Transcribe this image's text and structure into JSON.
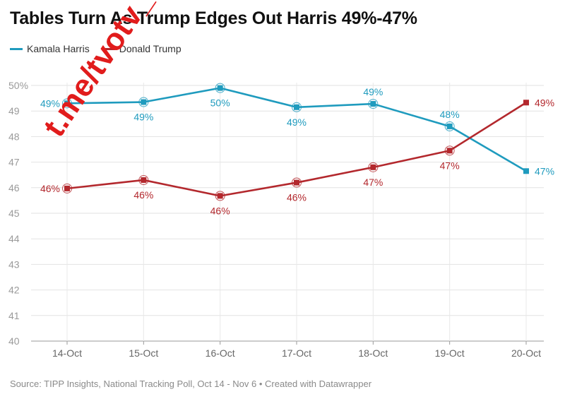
{
  "header": {
    "title": "Tables Turn As Trump Edges Out Harris 49%-47%"
  },
  "watermark": "t.me/tvotv_sk",
  "source": "Source: TIPP Insights, National Tracking Poll, Oct 14 - Nov 6 • Created with Datawrapper",
  "chart_data": {
    "type": "line",
    "title": "Tables Turn As Trump Edges Out Harris 49%-47%",
    "xlabel": "",
    "ylabel": "",
    "categories": [
      "14-Oct",
      "15-Oct",
      "16-Oct",
      "17-Oct",
      "18-Oct",
      "19-Oct",
      "20-Oct"
    ],
    "ylim": [
      40,
      50
    ],
    "yticks": [
      {
        "value": 50,
        "label": "50%"
      },
      {
        "value": 49,
        "label": "49"
      },
      {
        "value": 48,
        "label": "48"
      },
      {
        "value": 47,
        "label": "47"
      },
      {
        "value": 46,
        "label": "46"
      },
      {
        "value": 45,
        "label": "45"
      },
      {
        "value": 44,
        "label": "44"
      },
      {
        "value": 43,
        "label": "43"
      },
      {
        "value": 42,
        "label": "42"
      },
      {
        "value": 41,
        "label": "41"
      },
      {
        "value": 40,
        "label": "40"
      }
    ],
    "grid": true,
    "legend": "top-left",
    "series": [
      {
        "name": "Kamala Harris",
        "color": "#1f9bbe",
        "values": [
          49.3,
          49.35,
          49.9,
          49.15,
          49.28,
          48.4,
          46.65
        ],
        "labels": [
          "49%",
          "49%",
          "50%",
          "49%",
          "49%",
          "48%",
          "47%"
        ],
        "label_positions": [
          "left",
          "below",
          "below",
          "below",
          "above",
          "above",
          "right"
        ]
      },
      {
        "name": "Donald Trump",
        "color": "#b3282d",
        "values": [
          45.97,
          46.3,
          45.68,
          46.2,
          46.8,
          47.45,
          49.33
        ],
        "labels": [
          "46%",
          "46%",
          "46%",
          "46%",
          "47%",
          "47%",
          "49%"
        ],
        "label_positions": [
          "left",
          "below",
          "below",
          "below",
          "below",
          "below",
          "right"
        ]
      }
    ]
  }
}
